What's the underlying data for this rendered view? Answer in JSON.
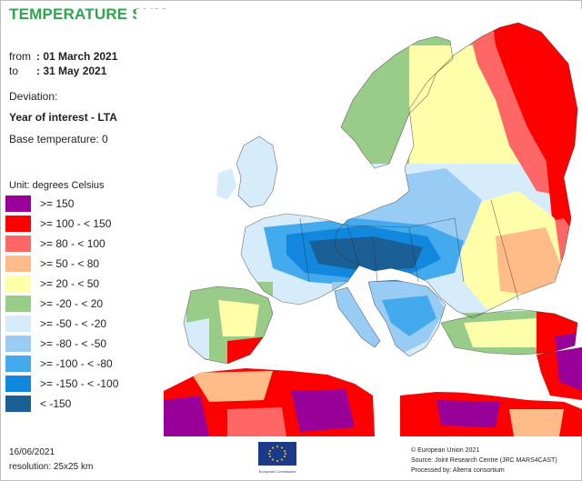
{
  "title": "TEMPERATURE SUM",
  "period": {
    "from_label": "from",
    "from_value": ": 01 March 2021",
    "to_label": "to",
    "to_value": ": 31 May 2021"
  },
  "deviation_label": "Deviation:",
  "year_of_interest": "Year of interest - LTA",
  "base_temperature": "Base temperature: 0",
  "legend": {
    "unit": "Unit: degrees Celsius",
    "items": [
      {
        "label": ">= 150",
        "color": "#990099"
      },
      {
        "label": ">= 100 - < 150",
        "color": "#ff0000"
      },
      {
        "label": ">= 80 - < 100",
        "color": "#ff6666"
      },
      {
        "label": ">= 50 - < 80",
        "color": "#ffbb88"
      },
      {
        "label": ">= 20 - < 50",
        "color": "#ffffaa"
      },
      {
        "label": ">= -20 - < 20",
        "color": "#99cc88"
      },
      {
        "label": ">= -50 - < -20",
        "color": "#d6ecfa"
      },
      {
        "label": ">= -80 - < -50",
        "color": "#99ccf5"
      },
      {
        "label": ">= -100 - < -80",
        "color": "#44aaee"
      },
      {
        "label": ">= -150 - < -100",
        "color": "#1188dd"
      },
      {
        "label": "< -150",
        "color": "#1a5f96"
      }
    ]
  },
  "footer": {
    "date": "16/06/2021",
    "resolution": "resolution: 25x25 km",
    "copyright": "© European Union 2021",
    "source": "Source: Joint Research Centre (JRC MARS4CAST)",
    "processed": "Processed by: Alterra consortium",
    "ec_logo_text": "European Commission"
  }
}
